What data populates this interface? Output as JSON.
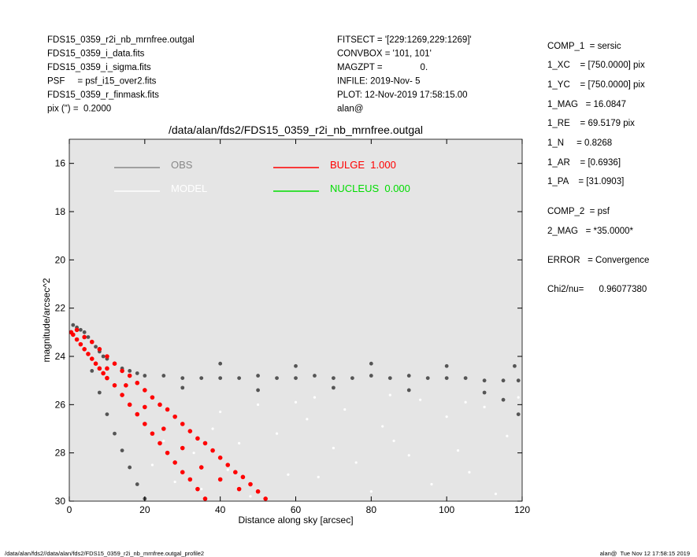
{
  "header": {
    "left": [
      "FDS15_0359_r2i_nb_mrnfree.outgal",
      "FDS15_0359_i_data.fits",
      "FDS15_0359_i_sigma.fits",
      "PSF     = psf_i15_over2.fits",
      "FDS15_0359_r_finmask.fits",
      "pix (\") =  0.2000"
    ],
    "middle": [
      "FITSECT = '[229:1269,229:1269]'",
      "CONVBOX = '101, 101'",
      "MAGZPT =               0.",
      "INFILE: 2019-Nov- 5",
      "PLOT: 12-Nov-2019 17:58:15.00",
      "alan@"
    ],
    "right": [
      "COMP_1  = sersic",
      "1_XC    = [750.0000] pix",
      "1_YC    = [750.0000] pix",
      "1_MAG   = 16.0847",
      "1_RE    = 69.5179 pix",
      "1_N     = 0.8268",
      "1_AR    = [0.6936]",
      "1_PA    = [31.0903]",
      "COMP_2  = psf",
      "2_MAG   = *35.0000*",
      "ERROR   = Convergence",
      "Chi2/nu=      0.96077380"
    ]
  },
  "footer": {
    "left": "/data/alan/fds2//data/alan/fds2/FDS15_0359_r2i_nb_mrnfree.outgal_profile2",
    "right": "alan@  Tue Nov 12 17:58:15 2019"
  },
  "chart_data": {
    "type": "scatter",
    "title": "/data/alan/fds2/FDS15_0359_r2i_nb_mrnfree.outgal",
    "x_label": "Distance along sky [arcsec]",
    "y_label": "magnitude/arcsec^2",
    "xlim": [
      0,
      120
    ],
    "xticks": [
      0,
      20,
      40,
      60,
      80,
      100,
      120
    ],
    "ylim": [
      30,
      15
    ],
    "yticks": [
      16,
      18,
      20,
      22,
      24,
      26,
      28,
      30
    ],
    "background": "#e5e5e5",
    "legend": "upper left",
    "series": [
      {
        "name": "OBS",
        "color": "#555555",
        "x": [
          1,
          2,
          3,
          4,
          5,
          6,
          7,
          8,
          9,
          10,
          12,
          14,
          16,
          18,
          20,
          25,
          30,
          35,
          40,
          45,
          50,
          55,
          60,
          65,
          70,
          75,
          80,
          85,
          90,
          95,
          100,
          105,
          110,
          115,
          119,
          6,
          8,
          10,
          12,
          14,
          16,
          18,
          20,
          30,
          50,
          70,
          90,
          110,
          115,
          119,
          40,
          60,
          80,
          100,
          118
        ],
        "values": [
          22.7,
          22.8,
          22.9,
          23.0,
          23.2,
          23.4,
          23.6,
          23.8,
          24.0,
          24.1,
          24.3,
          24.5,
          24.6,
          24.7,
          24.8,
          24.8,
          24.9,
          24.9,
          24.9,
          24.9,
          24.8,
          24.9,
          24.9,
          24.8,
          24.9,
          24.9,
          24.8,
          24.9,
          24.8,
          24.9,
          24.9,
          24.9,
          25.0,
          25.0,
          25.0,
          24.6,
          25.5,
          26.4,
          27.2,
          27.9,
          28.6,
          29.3,
          29.9,
          25.3,
          25.4,
          25.3,
          25.4,
          25.5,
          25.8,
          26.4,
          24.3,
          24.4,
          24.3,
          24.4,
          24.4
        ]
      },
      {
        "name": "MODEL",
        "color": "#ffffff",
        "x": [
          22,
          25,
          28,
          30,
          33,
          35,
          38,
          40,
          42,
          45,
          48,
          50,
          55,
          58,
          60,
          63,
          66,
          70,
          73,
          76,
          80,
          83,
          86,
          90,
          93,
          96,
          100,
          103,
          106,
          110,
          113,
          116,
          119,
          65,
          85,
          105
        ],
        "values": [
          28.5,
          27.5,
          29.2,
          26.8,
          28.0,
          29.5,
          27.0,
          26.3,
          28.7,
          27.6,
          29.8,
          26.0,
          27.2,
          28.9,
          25.9,
          26.6,
          29.0,
          27.8,
          26.2,
          28.4,
          29.6,
          26.9,
          27.5,
          28.1,
          25.8,
          29.3,
          26.5,
          27.9,
          28.8,
          26.1,
          29.7,
          27.3,
          25.7,
          25.7,
          25.6,
          25.9
        ]
      },
      {
        "name": "BULGE  1.000",
        "color": "#ff0000",
        "x": [
          0.5,
          1,
          2,
          3,
          4,
          5,
          6,
          7,
          8,
          9,
          10,
          12,
          14,
          16,
          18,
          20,
          22,
          24,
          26,
          28,
          30,
          32,
          34,
          36,
          2,
          4,
          6,
          8,
          10,
          12,
          14,
          16,
          18,
          20,
          22,
          24,
          26,
          28,
          30,
          32,
          34,
          36,
          38,
          40,
          42,
          44,
          46,
          48,
          50,
          52,
          10,
          15,
          20,
          25,
          30,
          35,
          40,
          45
        ],
        "values": [
          23.0,
          23.1,
          23.3,
          23.5,
          23.7,
          23.9,
          24.1,
          24.3,
          24.5,
          24.7,
          24.9,
          25.2,
          25.6,
          26.0,
          26.4,
          26.8,
          27.2,
          27.6,
          28.0,
          28.4,
          28.8,
          29.1,
          29.5,
          29.9,
          22.9,
          23.2,
          23.4,
          23.7,
          24.0,
          24.3,
          24.6,
          24.8,
          25.1,
          25.4,
          25.7,
          26.0,
          26.2,
          26.5,
          26.8,
          27.1,
          27.4,
          27.6,
          27.9,
          28.2,
          28.5,
          28.8,
          29.0,
          29.3,
          29.6,
          29.9,
          24.5,
          25.2,
          26.1,
          27.0,
          27.8,
          28.6,
          29.1,
          29.5
        ]
      },
      {
        "name": "NUCLEUS  0.000",
        "color": "#00dd00",
        "x": [],
        "values": []
      }
    ]
  }
}
